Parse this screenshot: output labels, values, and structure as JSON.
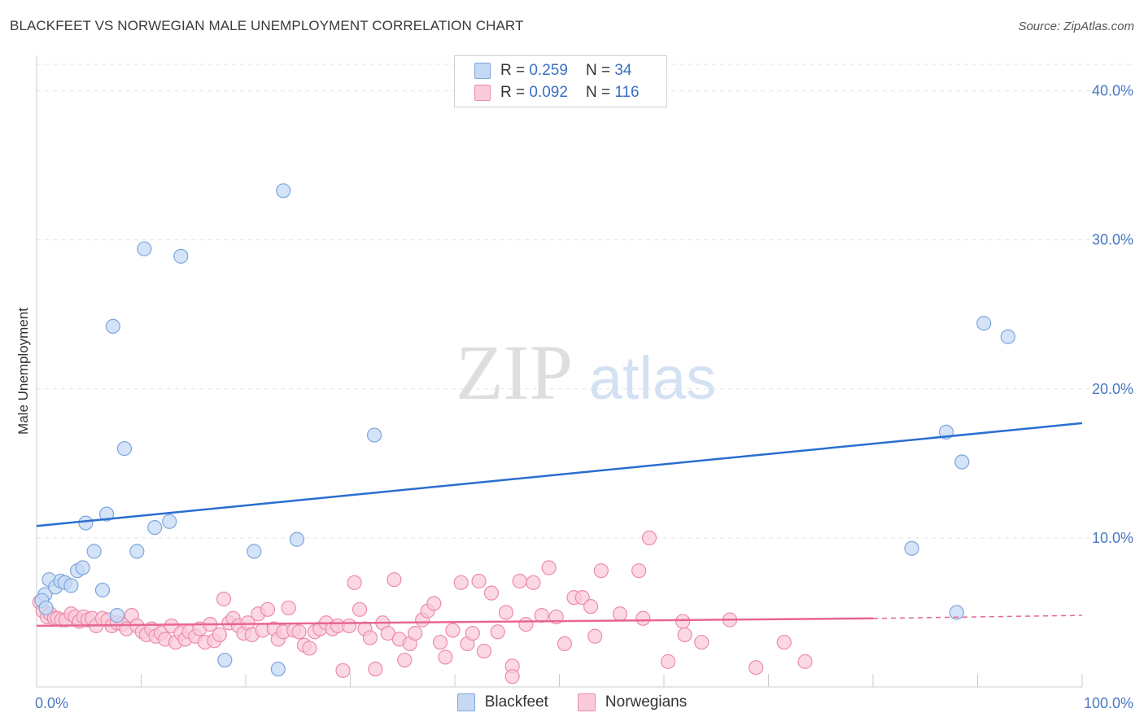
{
  "header": {
    "title": "BLACKFEET VS NORWEGIAN MALE UNEMPLOYMENT CORRELATION CHART",
    "source": "Source: ZipAtlas.com"
  },
  "legend": {
    "rows": [
      {
        "r_label": "R =",
        "r_value": "0.259",
        "n_label": "N =",
        "n_value": "34"
      },
      {
        "r_label": "R =",
        "r_value": "0.092",
        "n_label": "N =",
        "n_value": "116"
      }
    ],
    "series": [
      "Blackfeet",
      "Norwegians"
    ]
  },
  "watermark": {
    "zip": "ZIP",
    "atlas": "atlas"
  },
  "colors": {
    "blackfeet_fill": "#c5d9f5",
    "blackfeet_stroke": "#7ea6dc",
    "blackfeet_line": "#2a6ed0",
    "norwegians_fill": "#f9cbd9",
    "norwegians_stroke": "#ec8cab",
    "norwegians_line": "#e8668f",
    "tick_text": "#4a78c2"
  },
  "chart_data": {
    "type": "scatter",
    "title": "BLACKFEET VS NORWEGIAN MALE UNEMPLOYMENT CORRELATION CHART",
    "xlabel": "",
    "ylabel": "Male Unemployment",
    "xlim": [
      0,
      100
    ],
    "ylim": [
      0,
      42
    ],
    "x_tick_labels": [
      "0.0%",
      "100.0%"
    ],
    "y_ticks": [
      10,
      20,
      30,
      40
    ],
    "y_tick_labels": [
      "10.0%",
      "20.0%",
      "30.0%",
      "40.0%"
    ],
    "grid": true,
    "legend_position": "top-center",
    "series": [
      {
        "name": "Blackfeet",
        "r": 0.259,
        "n": 34,
        "trend": {
          "x": [
            0,
            100
          ],
          "y": [
            10.8,
            17.7
          ],
          "dashed_from": null
        },
        "points": [
          [
            0.8,
            6.2
          ],
          [
            1.2,
            7.2
          ],
          [
            1.8,
            6.7
          ],
          [
            2.3,
            7.1
          ],
          [
            2.7,
            7.0
          ],
          [
            3.3,
            6.8
          ],
          [
            3.9,
            7.8
          ],
          [
            4.4,
            8.0
          ],
          [
            4.7,
            11.0
          ],
          [
            5.5,
            9.1
          ],
          [
            6.3,
            6.5
          ],
          [
            6.7,
            11.6
          ],
          [
            7.3,
            24.2
          ],
          [
            7.7,
            4.8
          ],
          [
            8.4,
            16.0
          ],
          [
            9.6,
            9.1
          ],
          [
            10.3,
            29.4
          ],
          [
            11.3,
            10.7
          ],
          [
            12.7,
            11.1
          ],
          [
            13.8,
            28.9
          ],
          [
            18.0,
            1.8
          ],
          [
            20.8,
            9.1
          ],
          [
            23.1,
            1.2
          ],
          [
            23.6,
            33.3
          ],
          [
            24.9,
            9.9
          ],
          [
            32.3,
            16.9
          ],
          [
            83.7,
            9.3
          ],
          [
            87.0,
            17.1
          ],
          [
            88.0,
            5.0
          ],
          [
            88.5,
            15.1
          ],
          [
            90.6,
            24.4
          ],
          [
            92.9,
            23.5
          ],
          [
            0.5,
            5.8
          ],
          [
            0.9,
            5.3
          ]
        ]
      },
      {
        "name": "Norwegians",
        "r": 0.092,
        "n": 116,
        "trend": {
          "x": [
            0,
            80,
            100
          ],
          "y": [
            4.1,
            4.6,
            4.8
          ],
          "dashed_from": 80
        },
        "points": [
          [
            0.3,
            5.7
          ],
          [
            0.6,
            5.1
          ],
          [
            1.0,
            4.7
          ],
          [
            1.3,
            4.9
          ],
          [
            1.7,
            4.6
          ],
          [
            2.0,
            4.6
          ],
          [
            2.4,
            4.5
          ],
          [
            2.8,
            4.5
          ],
          [
            3.3,
            4.9
          ],
          [
            3.7,
            4.7
          ],
          [
            4.1,
            4.4
          ],
          [
            4.5,
            4.7
          ],
          [
            4.9,
            4.5
          ],
          [
            5.3,
            4.6
          ],
          [
            5.7,
            4.1
          ],
          [
            6.3,
            4.6
          ],
          [
            6.8,
            4.5
          ],
          [
            7.2,
            4.1
          ],
          [
            7.7,
            4.3
          ],
          [
            8.2,
            4.2
          ],
          [
            8.6,
            3.9
          ],
          [
            9.1,
            4.8
          ],
          [
            9.6,
            4.1
          ],
          [
            10.1,
            3.7
          ],
          [
            10.5,
            3.5
          ],
          [
            11.0,
            3.9
          ],
          [
            11.4,
            3.4
          ],
          [
            11.9,
            3.6
          ],
          [
            12.3,
            3.2
          ],
          [
            12.9,
            4.1
          ],
          [
            13.3,
            3.0
          ],
          [
            13.8,
            3.6
          ],
          [
            14.2,
            3.2
          ],
          [
            14.6,
            3.7
          ],
          [
            15.2,
            3.4
          ],
          [
            15.6,
            3.9
          ],
          [
            16.1,
            3.0
          ],
          [
            16.6,
            4.2
          ],
          [
            17.0,
            3.1
          ],
          [
            17.5,
            3.5
          ],
          [
            17.9,
            5.9
          ],
          [
            18.4,
            4.3
          ],
          [
            18.8,
            4.6
          ],
          [
            19.3,
            4.1
          ],
          [
            19.8,
            3.6
          ],
          [
            20.2,
            4.3
          ],
          [
            20.6,
            3.5
          ],
          [
            21.2,
            4.9
          ],
          [
            21.6,
            3.8
          ],
          [
            22.1,
            5.2
          ],
          [
            22.7,
            3.9
          ],
          [
            23.1,
            3.2
          ],
          [
            23.6,
            3.7
          ],
          [
            24.1,
            5.3
          ],
          [
            24.6,
            3.8
          ],
          [
            25.1,
            3.7
          ],
          [
            25.6,
            2.8
          ],
          [
            26.1,
            2.6
          ],
          [
            26.6,
            3.7
          ],
          [
            27.1,
            3.9
          ],
          [
            27.7,
            4.3
          ],
          [
            28.3,
            3.9
          ],
          [
            28.8,
            4.1
          ],
          [
            29.3,
            1.1
          ],
          [
            29.9,
            4.1
          ],
          [
            30.4,
            7.0
          ],
          [
            30.9,
            5.2
          ],
          [
            31.4,
            3.9
          ],
          [
            31.9,
            3.3
          ],
          [
            32.4,
            1.2
          ],
          [
            33.1,
            4.3
          ],
          [
            33.6,
            3.6
          ],
          [
            34.2,
            7.2
          ],
          [
            34.7,
            3.2
          ],
          [
            35.2,
            1.8
          ],
          [
            35.7,
            2.9
          ],
          [
            36.2,
            3.6
          ],
          [
            36.9,
            4.5
          ],
          [
            37.4,
            5.1
          ],
          [
            38.0,
            5.6
          ],
          [
            38.6,
            3.0
          ],
          [
            39.1,
            2.0
          ],
          [
            39.8,
            3.8
          ],
          [
            40.6,
            7.0
          ],
          [
            41.2,
            2.9
          ],
          [
            41.7,
            3.6
          ],
          [
            42.3,
            7.1
          ],
          [
            42.8,
            2.4
          ],
          [
            43.5,
            6.3
          ],
          [
            44.1,
            3.7
          ],
          [
            44.9,
            5.0
          ],
          [
            45.5,
            1.4
          ],
          [
            46.2,
            7.1
          ],
          [
            46.8,
            4.2
          ],
          [
            47.5,
            7.0
          ],
          [
            48.3,
            4.8
          ],
          [
            49.0,
            8.0
          ],
          [
            49.7,
            4.7
          ],
          [
            50.5,
            2.9
          ],
          [
            51.4,
            6.0
          ],
          [
            52.2,
            6.0
          ],
          [
            53.0,
            5.4
          ],
          [
            54.0,
            7.8
          ],
          [
            55.8,
            4.9
          ],
          [
            57.6,
            7.8
          ],
          [
            58.6,
            10.0
          ],
          [
            60.4,
            1.7
          ],
          [
            61.8,
            4.4
          ],
          [
            63.6,
            3.0
          ],
          [
            66.3,
            4.5
          ],
          [
            68.8,
            1.3
          ],
          [
            71.5,
            3.0
          ],
          [
            73.5,
            1.7
          ],
          [
            45.5,
            0.7
          ],
          [
            53.4,
            3.4
          ],
          [
            58.0,
            4.6
          ],
          [
            62.0,
            3.5
          ]
        ]
      }
    ]
  }
}
